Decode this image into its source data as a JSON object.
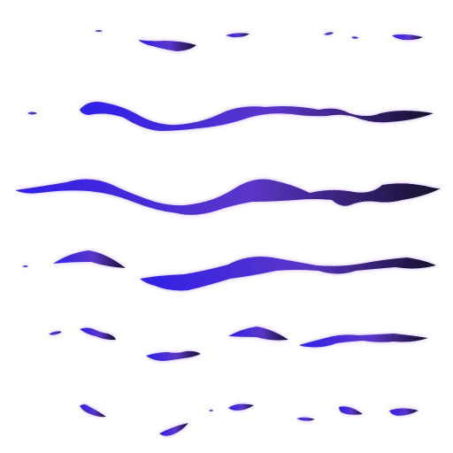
{
  "artwork": {
    "kind": "brush-stroke-preset-sheet",
    "background_color": "#ffffff",
    "glow_color": "#c9a6ff",
    "gradient": {
      "start": "#2f20e8",
      "mid": "#5a36c8",
      "end": "#141028"
    },
    "rows": [
      {
        "name": "fragmented-thin-strokes",
        "style": "sparse"
      },
      {
        "name": "long-wavy-stroke-a",
        "style": "continuous"
      },
      {
        "name": "long-wavy-stroke-full",
        "style": "continuous"
      },
      {
        "name": "long-wavy-stroke-b",
        "style": "continuous"
      },
      {
        "name": "broken-wavy-stroke",
        "style": "fragmented"
      },
      {
        "name": "dotted-fragment-stroke",
        "style": "sparse"
      }
    ]
  }
}
